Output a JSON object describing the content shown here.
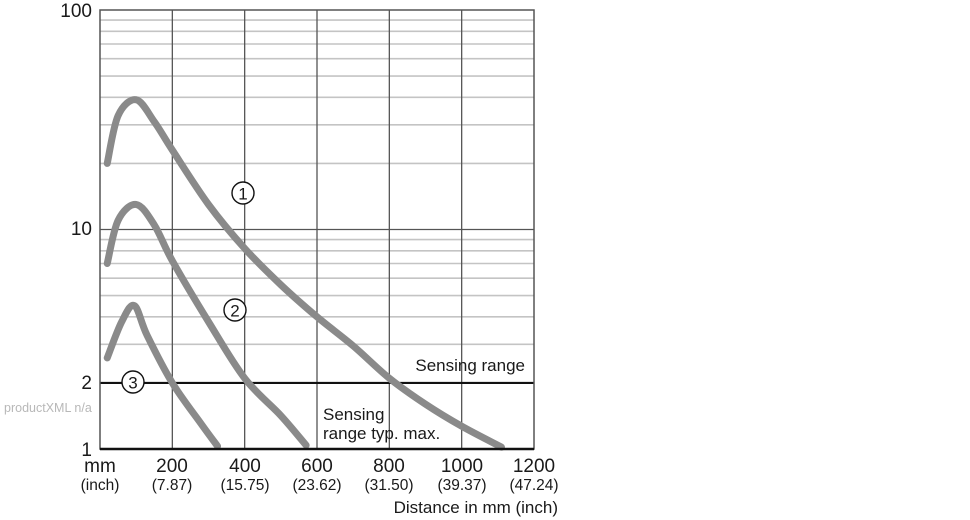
{
  "chart_data": {
    "type": "line",
    "title": "",
    "xlabel": "Distance in mm (inch)",
    "ylabel": "",
    "xscale": "linear",
    "yscale": "log",
    "xlim": [
      0,
      1200
    ],
    "ylim": [
      1,
      100
    ],
    "grid": true,
    "x_ticks": [
      {
        "mm": "mm",
        "inch": "(inch)"
      },
      {
        "mm": "200",
        "inch": "(7.87)"
      },
      {
        "mm": "400",
        "inch": "(15.75)"
      },
      {
        "mm": "600",
        "inch": "(23.62)"
      },
      {
        "mm": "800",
        "inch": "(31.50)"
      },
      {
        "mm": "1000",
        "inch": "(39.37)"
      },
      {
        "mm": "1200",
        "inch": "(47.24)"
      }
    ],
    "y_ticks": [
      "1",
      "2",
      "10",
      "100"
    ],
    "reference_line": {
      "y": 2,
      "label": "Sensing range"
    },
    "annotations": [
      {
        "text_line1": "Sensing",
        "text_line2": "range typ. max."
      }
    ],
    "series": [
      {
        "name": "1",
        "marker": "①",
        "points": [
          [
            20,
            20
          ],
          [
            50,
            33
          ],
          [
            100,
            39
          ],
          [
            150,
            31
          ],
          [
            200,
            23
          ],
          [
            300,
            13
          ],
          [
            400,
            8.2
          ],
          [
            500,
            5.6
          ],
          [
            600,
            4.0
          ],
          [
            700,
            2.95
          ],
          [
            800,
            2.1
          ],
          [
            900,
            1.6
          ],
          [
            1000,
            1.27
          ],
          [
            1110,
            1.02
          ]
        ]
      },
      {
        "name": "2",
        "marker": "②",
        "points": [
          [
            20,
            7
          ],
          [
            50,
            11
          ],
          [
            100,
            13
          ],
          [
            150,
            10.5
          ],
          [
            200,
            7.2
          ],
          [
            300,
            3.8
          ],
          [
            400,
            2.1
          ],
          [
            500,
            1.42
          ],
          [
            570,
            1.04
          ]
        ]
      },
      {
        "name": "3",
        "marker": "③",
        "points": [
          [
            20,
            2.6
          ],
          [
            60,
            3.8
          ],
          [
            95,
            4.5
          ],
          [
            130,
            3.3
          ],
          [
            200,
            2.0
          ],
          [
            280,
            1.3
          ],
          [
            325,
            1.03
          ]
        ]
      }
    ]
  },
  "watermark": "productXML n/a"
}
